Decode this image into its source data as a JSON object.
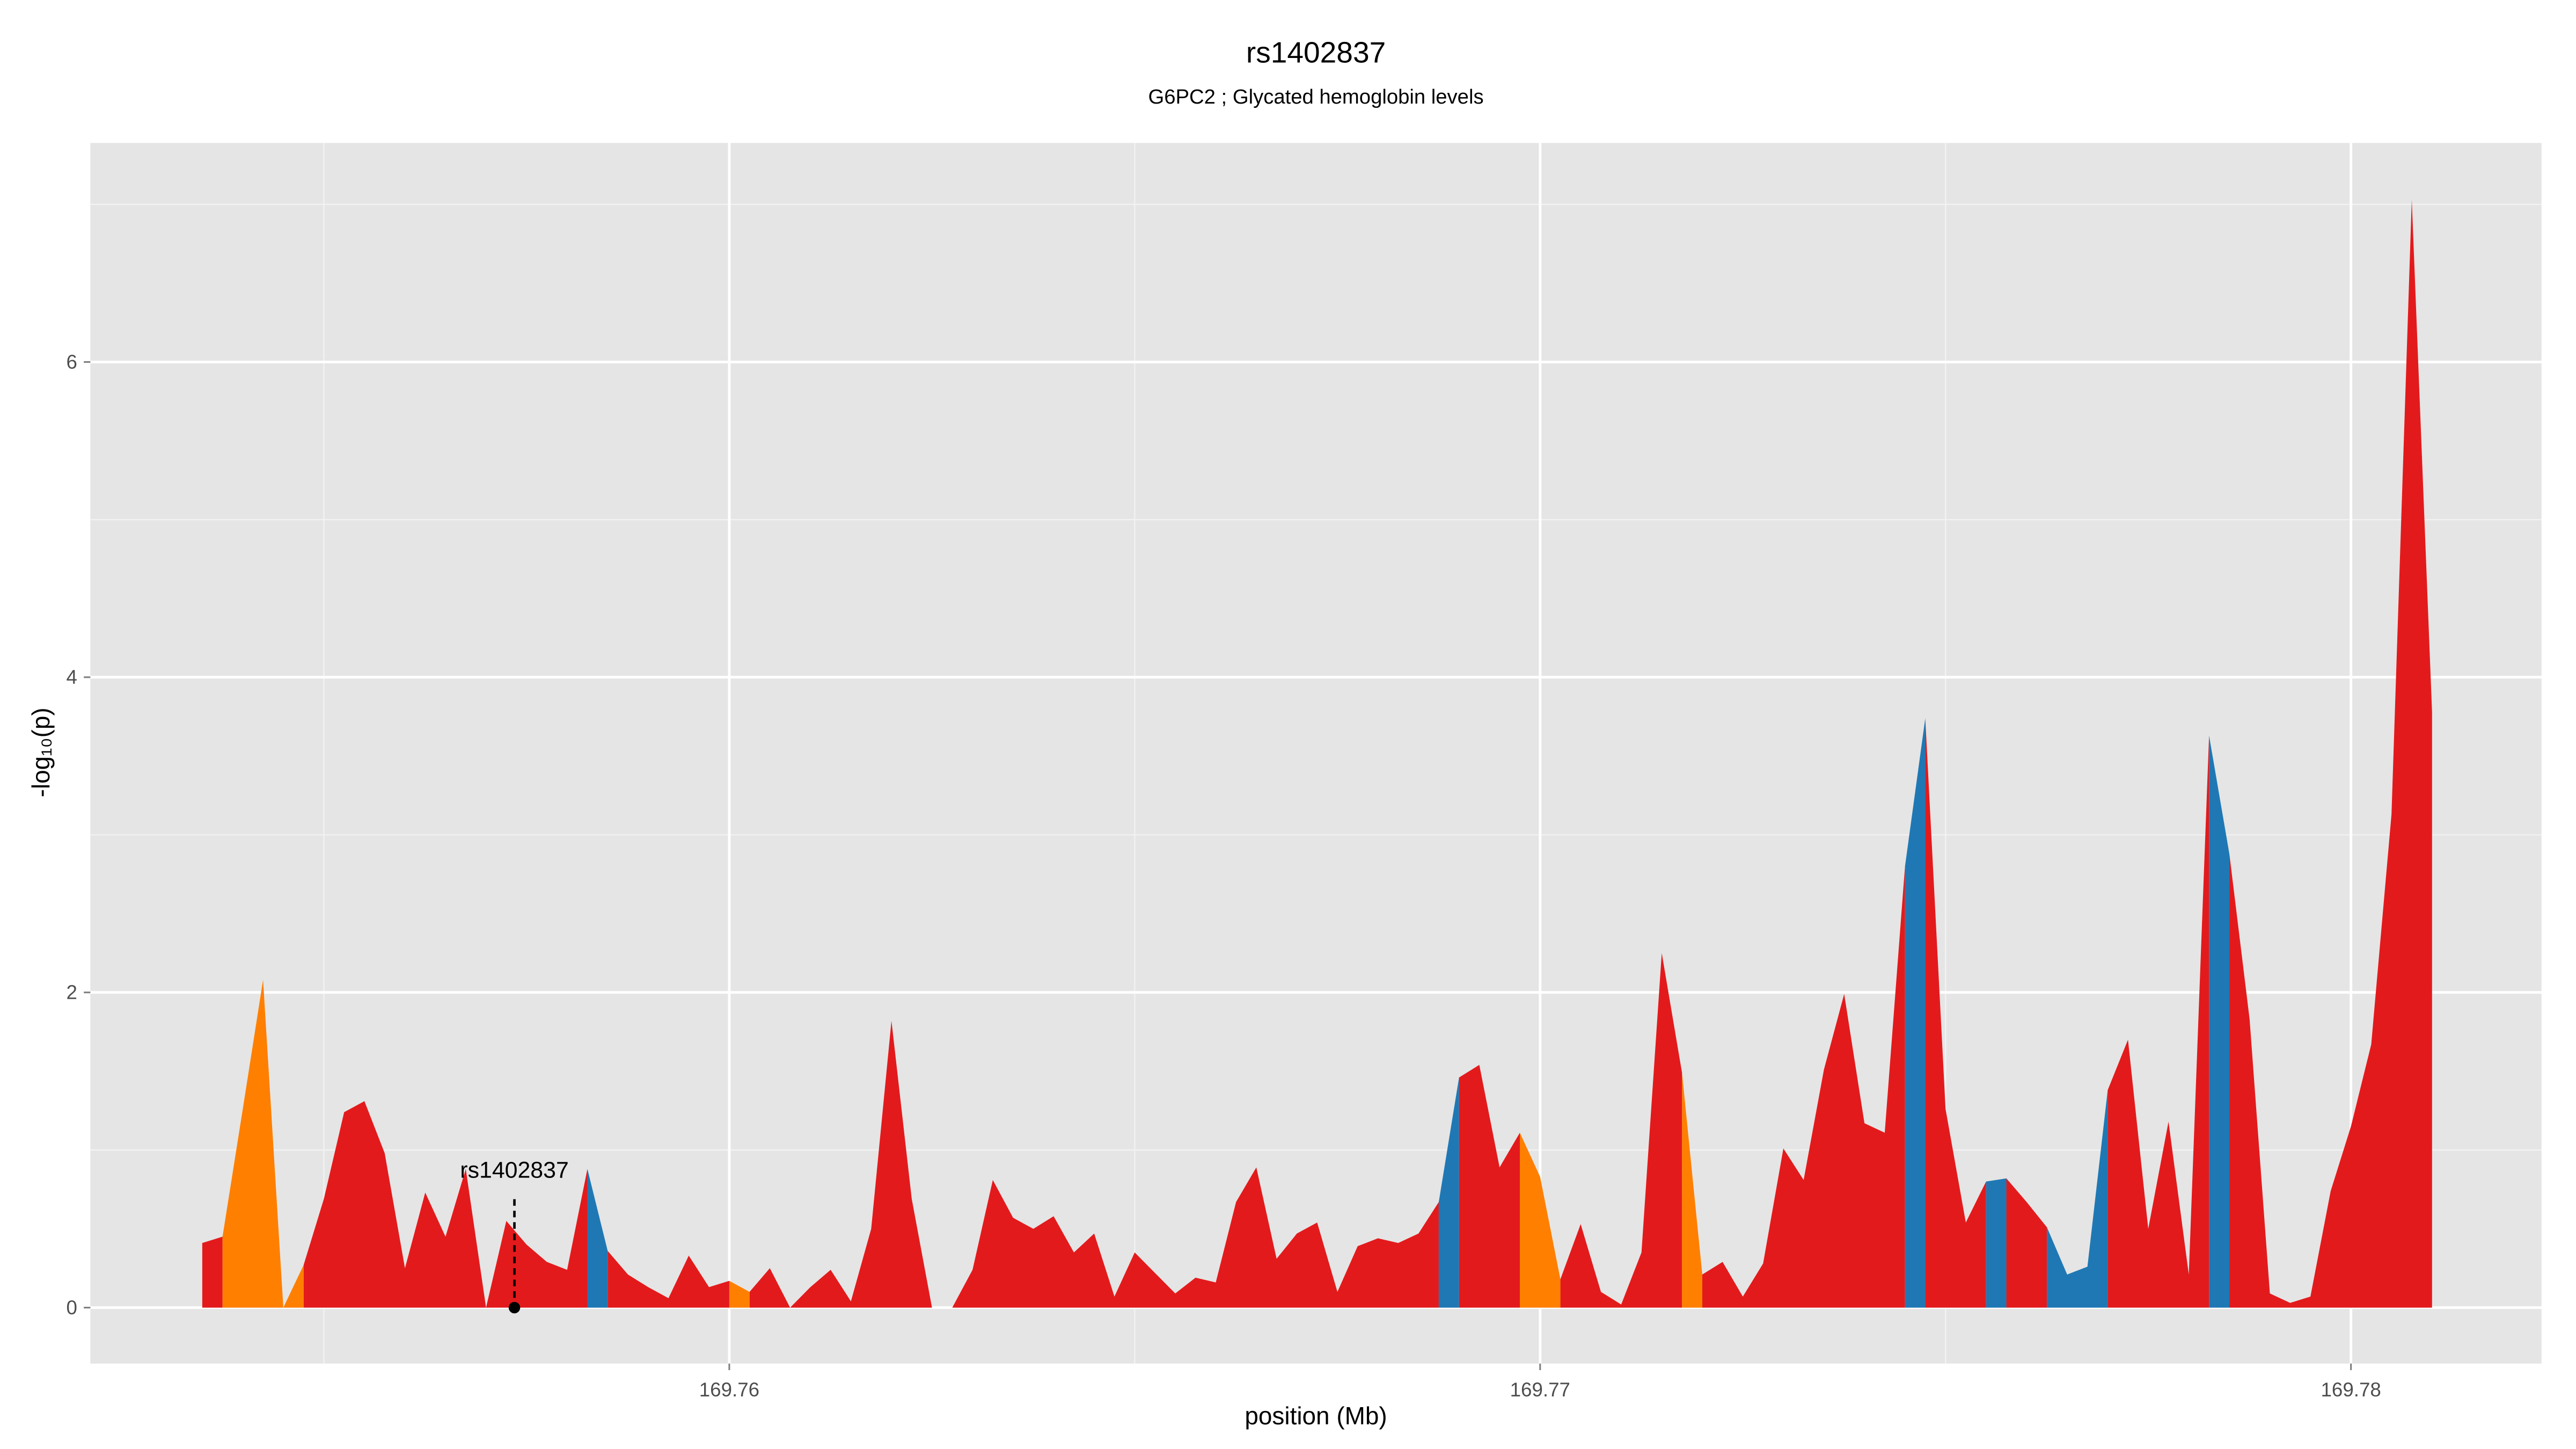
{
  "chart_data": {
    "type": "area",
    "title": "rs1402837",
    "subtitle": "G6PC2 ; Glycated hemoglobin levels",
    "xlabel": "position (Mb)",
    "ylabel": "-log₁₀(p)",
    "xlim": [
      169.75212,
      169.78235
    ],
    "ylim": [
      -0.355,
      7.39
    ],
    "xticks": [
      169.76,
      169.77,
      169.78
    ],
    "yticks": [
      0,
      2,
      4,
      6
    ],
    "xminor": [
      169.755,
      169.765,
      169.775
    ],
    "yminor": [
      1,
      3,
      5,
      7
    ],
    "grid": true,
    "background": "#e5e5e5",
    "x": [
      169.7535,
      169.75375,
      169.754,
      169.75425,
      169.7545,
      169.75475,
      169.755,
      169.75525,
      169.7555,
      169.75575,
      169.756,
      169.75625,
      169.7565,
      169.75675,
      169.757,
      169.75725,
      169.7575,
      169.75775,
      169.758,
      169.75825,
      169.7585,
      169.75875,
      169.759,
      169.75925,
      169.7595,
      169.75975,
      169.76,
      169.76025,
      169.7605,
      169.76075,
      169.761,
      169.76125,
      169.7615,
      169.76175,
      169.762,
      169.76225,
      169.7625,
      169.76275,
      169.763,
      169.76325,
      169.7635,
      169.76375,
      169.764,
      169.76425,
      169.7645,
      169.76475,
      169.765,
      169.76525,
      169.7655,
      169.76575,
      169.766,
      169.76625,
      169.7665,
      169.76675,
      169.767,
      169.76725,
      169.7675,
      169.76775,
      169.768,
      169.76825,
      169.7685,
      169.76875,
      169.769,
      169.76925,
      169.7695,
      169.76975,
      169.77,
      169.77025,
      169.7705,
      169.77075,
      169.771,
      169.77125,
      169.7715,
      169.77175,
      169.772,
      169.77225,
      169.7725,
      169.77275,
      169.773,
      169.77325,
      169.7735,
      169.77375,
      169.774,
      169.77425,
      169.7745,
      169.77475,
      169.775,
      169.77525,
      169.7755,
      169.77575,
      169.776,
      169.77625,
      169.7765,
      169.77675,
      169.777,
      169.77725,
      169.7775,
      169.77775,
      169.778,
      169.77825,
      169.7785,
      169.77875,
      169.779,
      169.77925,
      169.7795,
      169.77975,
      169.78,
      169.78025,
      169.7805,
      169.78075,
      169.781
    ],
    "series": [
      {
        "color": "#e31a1c",
        "values": [
          0.41,
          0.45,
          null,
          null,
          null,
          null,
          null,
          null,
          null,
          null,
          null,
          null,
          null,
          null,
          null,
          null,
          null,
          null,
          null,
          null,
          0.36,
          0.21,
          0.13,
          0.06,
          0.33,
          0.13,
          0.17,
          null,
          null,
          null,
          null,
          null,
          null,
          null,
          null,
          null,
          null,
          null,
          null,
          null,
          null,
          null,
          null,
          null,
          null,
          null,
          null,
          null,
          null,
          null,
          null,
          null,
          null,
          null,
          null,
          null,
          null,
          null,
          null,
          null,
          null,
          null,
          1.46,
          1.54,
          0.89,
          1.11,
          null,
          null,
          null,
          null,
          null,
          null,
          null,
          null,
          0.21,
          0.29,
          0.07,
          0.28,
          1.01,
          0.81,
          1.51,
          1.99,
          1.17,
          1.11,
          2.8,
          null,
          null,
          null,
          null,
          0.82,
          0.67,
          0.51,
          null,
          null,
          null,
          null,
          null,
          null,
          null,
          null,
          2.88,
          1.83,
          0.09,
          0.03,
          0.07,
          0.74,
          1.15,
          1.67,
          3.13,
          7.03,
          3.78
        ]
      },
      {
        "color": "#e31a1c",
        "values": [
          null,
          null,
          null,
          null,
          null,
          0.27,
          0.69,
          1.24,
          1.31,
          0.98,
          0.25,
          0.73,
          0.45,
          0.88,
          0,
          0.55,
          0.4,
          0.29,
          0.24,
          0.88,
          null,
          null,
          null,
          null,
          null,
          null,
          null,
          0.1,
          0.25,
          0,
          0.13,
          0.24,
          0.04,
          0.5,
          1.82,
          0.69,
          0,
          0,
          0.24,
          0.81,
          0.57,
          0.5,
          0.58,
          0.35,
          0.47,
          0.07,
          0.35,
          0.22,
          0.09,
          0.19,
          0.16,
          0.67,
          0.89,
          0.31,
          0.47,
          0.54,
          0.1,
          0.39,
          0.44,
          0.41,
          0.47,
          0.67,
          null,
          null,
          null,
          null,
          null,
          0.18,
          0.53,
          0.1,
          0.02,
          0.35,
          2.25,
          1.49,
          null,
          null,
          null,
          null,
          null,
          null,
          null,
          null,
          null,
          null,
          null,
          3.74,
          1.26,
          0.54,
          0.8,
          null,
          null,
          null,
          null,
          null,
          1.38,
          1.7,
          0.5,
          1.18,
          0.21,
          3.63,
          null,
          null,
          null,
          null,
          null,
          null,
          null,
          null,
          null,
          null,
          null
        ]
      },
      {
        "color": "#ff7f00",
        "values": [
          null,
          0.45,
          1.26,
          2.08,
          0,
          0.27,
          null,
          null,
          null,
          null,
          null,
          null,
          null,
          null,
          null,
          null,
          null,
          null,
          null,
          null,
          null,
          null,
          null,
          null,
          null,
          null,
          0.17,
          0.1,
          null,
          null,
          null,
          null,
          null,
          null,
          null,
          null,
          null,
          null,
          null,
          null,
          null,
          null,
          null,
          null,
          null,
          null,
          null,
          null,
          null,
          null,
          null,
          null,
          null,
          null,
          null,
          null,
          null,
          null,
          null,
          null,
          null,
          null,
          null,
          null,
          null,
          1.11,
          0.83,
          0.18,
          null,
          null,
          null,
          null,
          null,
          1.49,
          0.21,
          null,
          null,
          null,
          null,
          null,
          null,
          null,
          null,
          null,
          null,
          null,
          null,
          null,
          null,
          null,
          null,
          null,
          null,
          null,
          null,
          null,
          null,
          null,
          null,
          null,
          null,
          null,
          null,
          null,
          null,
          null,
          null,
          null,
          null,
          null,
          null
        ]
      },
      {
        "color": "#1f78b4",
        "values": [
          null,
          null,
          null,
          null,
          null,
          null,
          null,
          null,
          null,
          null,
          null,
          null,
          null,
          null,
          null,
          null,
          null,
          null,
          null,
          0.88,
          0.36,
          null,
          null,
          null,
          null,
          null,
          null,
          null,
          null,
          null,
          null,
          null,
          null,
          null,
          null,
          null,
          null,
          null,
          null,
          null,
          null,
          null,
          null,
          null,
          null,
          null,
          null,
          null,
          null,
          null,
          null,
          null,
          null,
          null,
          null,
          null,
          null,
          null,
          null,
          null,
          null,
          0.67,
          1.46,
          null,
          null,
          null,
          null,
          null,
          null,
          null,
          null,
          null,
          null,
          null,
          null,
          null,
          null,
          null,
          null,
          null,
          null,
          null,
          null,
          null,
          2.8,
          3.74,
          null,
          null,
          0.8,
          0.82,
          null,
          0.51,
          0.21,
          0.26,
          1.38,
          null,
          null,
          null,
          null,
          3.63,
          2.88,
          null,
          null,
          null,
          null,
          null,
          null,
          null,
          null,
          null,
          null
        ]
      }
    ],
    "annotation": {
      "text": "rs1402837",
      "x": 169.75735,
      "y": 0
    }
  }
}
